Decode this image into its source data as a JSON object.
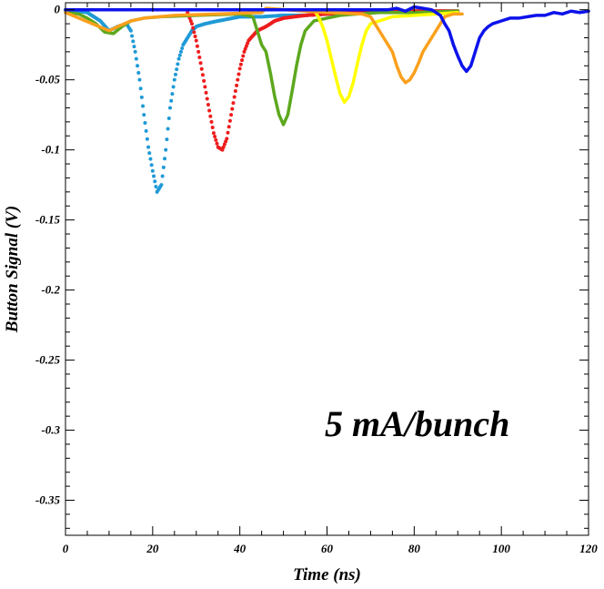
{
  "chart_data": {
    "type": "line",
    "xlabel": "Time (ns)",
    "ylabel": "Button Signal (V)",
    "annotation": "5 mA/bunch",
    "xlim": [
      0,
      120
    ],
    "ylim": [
      -0.375,
      0.005
    ],
    "x_ticks": [
      0,
      20,
      40,
      60,
      80,
      100,
      120
    ],
    "x_tick_labels": [
      "0",
      "20",
      "40",
      "60",
      "80",
      "100",
      "120"
    ],
    "y_ticks": [
      0,
      -0.05,
      -0.1,
      -0.15,
      -0.2,
      -0.25,
      -0.3,
      -0.35
    ],
    "y_tick_labels": [
      "0",
      "-0.05",
      "-0.1",
      "-0.15",
      "-0.2",
      "-0.25",
      "-0.3",
      "-0.35"
    ],
    "grid": false,
    "series": [
      {
        "color": "#1f9ad6",
        "style": "dots",
        "points": [
          [
            0,
            0
          ],
          [
            5,
            -0.002
          ],
          [
            8,
            -0.008
          ],
          [
            10,
            -0.015
          ],
          [
            12,
            -0.012
          ],
          [
            14,
            -0.01
          ],
          [
            15,
            -0.015
          ],
          [
            16,
            -0.03
          ],
          [
            17,
            -0.05
          ],
          [
            18,
            -0.075
          ],
          [
            19,
            -0.098
          ],
          [
            20,
            -0.115
          ],
          [
            21,
            -0.13
          ],
          [
            22,
            -0.125
          ],
          [
            23,
            -0.1
          ],
          [
            24,
            -0.07
          ],
          [
            25,
            -0.05
          ],
          [
            26,
            -0.035
          ],
          [
            27,
            -0.025
          ],
          [
            28,
            -0.02
          ],
          [
            29,
            -0.015
          ],
          [
            30,
            -0.012
          ],
          [
            32,
            -0.01
          ],
          [
            35,
            -0.008
          ],
          [
            40,
            -0.005
          ],
          [
            45,
            -0.005
          ],
          [
            50,
            -0.004
          ],
          [
            55,
            -0.004
          ],
          [
            60,
            -0.003
          ],
          [
            70,
            -0.002
          ],
          [
            80,
            -0.001
          ],
          [
            90,
            -0.001
          ]
        ]
      },
      {
        "color": "#ee1c1c",
        "style": "dots",
        "points": [
          [
            28,
            -0.002
          ],
          [
            29,
            -0.01
          ],
          [
            30,
            -0.022
          ],
          [
            31,
            -0.038
          ],
          [
            32,
            -0.055
          ],
          [
            33,
            -0.072
          ],
          [
            34,
            -0.088
          ],
          [
            35,
            -0.098
          ],
          [
            36,
            -0.1
          ],
          [
            37,
            -0.092
          ],
          [
            38,
            -0.075
          ],
          [
            39,
            -0.058
          ],
          [
            40,
            -0.042
          ],
          [
            41,
            -0.03
          ],
          [
            42,
            -0.022
          ],
          [
            44,
            -0.015
          ],
          [
            46,
            -0.012
          ],
          [
            48,
            -0.008
          ],
          [
            50,
            -0.006
          ],
          [
            55,
            -0.004
          ],
          [
            60,
            -0.003
          ],
          [
            65,
            -0.002
          ],
          [
            70,
            -0.002
          ],
          [
            80,
            -0.001
          ],
          [
            90,
            -0.001
          ]
        ]
      },
      {
        "color": "#5da81e",
        "style": "line",
        "points": [
          [
            0,
            -0.002
          ],
          [
            3,
            -0.003
          ],
          [
            5,
            -0.006
          ],
          [
            7,
            -0.01
          ],
          [
            9,
            -0.016
          ],
          [
            11,
            -0.017
          ],
          [
            13,
            -0.012
          ],
          [
            15,
            -0.008
          ],
          [
            18,
            -0.006
          ],
          [
            22,
            -0.005
          ],
          [
            30,
            -0.004
          ],
          [
            40,
            -0.003
          ],
          [
            43,
            -0.005
          ],
          [
            44,
            -0.015
          ],
          [
            45,
            -0.025
          ],
          [
            46,
            -0.03
          ],
          [
            47,
            -0.045
          ],
          [
            48,
            -0.062
          ],
          [
            49,
            -0.075
          ],
          [
            50,
            -0.082
          ],
          [
            51,
            -0.075
          ],
          [
            52,
            -0.058
          ],
          [
            53,
            -0.04
          ],
          [
            54,
            -0.025
          ],
          [
            55,
            -0.015
          ],
          [
            57,
            -0.008
          ],
          [
            60,
            -0.006
          ],
          [
            63,
            -0.004
          ],
          [
            67,
            -0.003
          ],
          [
            72,
            -0.002
          ],
          [
            80,
            -0.002
          ],
          [
            90,
            -0.001
          ]
        ]
      },
      {
        "color": "#ffff00",
        "style": "line",
        "points": [
          [
            57,
            0
          ],
          [
            58,
            -0.005
          ],
          [
            59,
            -0.012
          ],
          [
            60,
            -0.022
          ],
          [
            61,
            -0.035
          ],
          [
            62,
            -0.048
          ],
          [
            63,
            -0.06
          ],
          [
            64,
            -0.066
          ],
          [
            65,
            -0.062
          ],
          [
            66,
            -0.052
          ],
          [
            67,
            -0.038
          ],
          [
            68,
            -0.025
          ],
          [
            69,
            -0.015
          ],
          [
            70,
            -0.01
          ],
          [
            72,
            -0.008
          ],
          [
            75,
            -0.005
          ],
          [
            80,
            -0.004
          ],
          [
            85,
            -0.003
          ],
          [
            90,
            -0.002
          ]
        ]
      },
      {
        "color": "#fba01d",
        "style": "line",
        "points": [
          [
            0,
            -0.002
          ],
          [
            10,
            -0.015
          ],
          [
            12,
            -0.012
          ],
          [
            15,
            -0.008
          ],
          [
            18,
            -0.006
          ],
          [
            25,
            -0.004
          ],
          [
            35,
            -0.003
          ],
          [
            45,
            -0.002
          ],
          [
            46,
            0.001
          ],
          [
            55,
            -0.001
          ],
          [
            60,
            -0.002
          ],
          [
            68,
            -0.003
          ],
          [
            70,
            -0.005
          ],
          [
            71,
            -0.01
          ],
          [
            72,
            -0.015
          ],
          [
            73,
            -0.02
          ],
          [
            74,
            -0.025
          ],
          [
            75,
            -0.03
          ],
          [
            76,
            -0.04
          ],
          [
            77,
            -0.048
          ],
          [
            78,
            -0.052
          ],
          [
            79,
            -0.05
          ],
          [
            80,
            -0.045
          ],
          [
            81,
            -0.038
          ],
          [
            82,
            -0.03
          ],
          [
            83,
            -0.025
          ],
          [
            84,
            -0.02
          ],
          [
            85,
            -0.015
          ],
          [
            86,
            -0.01
          ],
          [
            87,
            -0.005
          ],
          [
            89,
            -0.003
          ],
          [
            91,
            -0.003
          ]
        ]
      },
      {
        "color": "#0d13ea",
        "style": "line",
        "points": [
          [
            0,
            0
          ],
          [
            10,
            0
          ],
          [
            20,
            0
          ],
          [
            30,
            0
          ],
          [
            40,
            0
          ],
          [
            50,
            0
          ],
          [
            60,
            0
          ],
          [
            70,
            0
          ],
          [
            74,
            0
          ],
          [
            76,
            0.001
          ],
          [
            78,
            -0.001
          ],
          [
            80,
            0.002
          ],
          [
            82,
            0.001
          ],
          [
            84,
            0
          ],
          [
            86,
            -0.004
          ],
          [
            87,
            -0.01
          ],
          [
            88,
            -0.015
          ],
          [
            89,
            -0.025
          ],
          [
            90,
            -0.033
          ],
          [
            91,
            -0.04
          ],
          [
            92,
            -0.044
          ],
          [
            93,
            -0.04
          ],
          [
            94,
            -0.03
          ],
          [
            95,
            -0.02
          ],
          [
            96,
            -0.015
          ],
          [
            97,
            -0.012
          ],
          [
            98,
            -0.01
          ],
          [
            100,
            -0.008
          ],
          [
            102,
            -0.006
          ],
          [
            104,
            -0.006
          ],
          [
            106,
            -0.005
          ],
          [
            108,
            -0.004
          ],
          [
            110,
            -0.004
          ],
          [
            112,
            -0.002
          ],
          [
            114,
            -0.003
          ],
          [
            116,
            -0.001
          ],
          [
            118,
            -0.002
          ],
          [
            120,
            -0.001
          ]
        ]
      }
    ]
  }
}
